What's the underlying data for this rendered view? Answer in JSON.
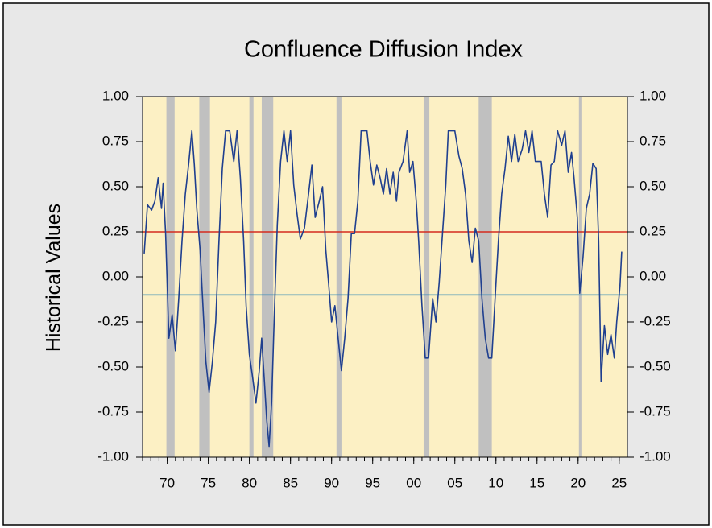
{
  "chart_data": {
    "type": "line",
    "title": "Confluence Diffusion Index",
    "y_label": "Historical Values",
    "x": [
      1967.2,
      1967.6,
      1968.1,
      1968.5,
      1968.9,
      1969.3,
      1969.5,
      1969.8,
      1970.2,
      1970.6,
      1971.0,
      1971.4,
      1971.8,
      1972.2,
      1972.6,
      1973.0,
      1973.3,
      1973.6,
      1974.0,
      1974.4,
      1974.7,
      1975.1,
      1975.5,
      1975.9,
      1976.3,
      1976.7,
      1977.1,
      1977.6,
      1978.1,
      1978.5,
      1978.9,
      1979.3,
      1979.6,
      1980.0,
      1980.4,
      1980.8,
      1981.2,
      1981.5,
      1981.8,
      1982.1,
      1982.4,
      1982.7,
      1983.0,
      1983.4,
      1983.8,
      1984.2,
      1984.6,
      1985.0,
      1985.4,
      1985.8,
      1986.2,
      1986.7,
      1987.2,
      1987.6,
      1988.0,
      1988.5,
      1988.9,
      1989.3,
      1989.7,
      1990.0,
      1990.4,
      1990.8,
      1991.2,
      1991.6,
      1992.0,
      1992.4,
      1992.8,
      1993.2,
      1993.6,
      1994.3,
      1994.7,
      1995.1,
      1995.5,
      1995.9,
      1996.3,
      1996.7,
      1997.1,
      1997.5,
      1997.9,
      1998.2,
      1998.7,
      1999.2,
      1999.5,
      1999.9,
      2000.3,
      2000.6,
      2001.0,
      2001.4,
      2001.8,
      2002.3,
      2002.7,
      2003.1,
      2003.5,
      2003.9,
      2004.2,
      2005.0,
      2005.5,
      2005.9,
      2006.3,
      2006.7,
      2007.1,
      2007.5,
      2007.9,
      2008.3,
      2008.7,
      2009.1,
      2009.5,
      2009.9,
      2010.3,
      2010.7,
      2011.1,
      2011.5,
      2011.9,
      2012.3,
      2012.7,
      2013.2,
      2013.6,
      2014.0,
      2014.4,
      2014.8,
      2015.5,
      2015.9,
      2016.3,
      2016.7,
      2017.1,
      2017.5,
      2018.0,
      2018.4,
      2018.8,
      2019.2,
      2019.5,
      2019.9,
      2020.2,
      2020.6,
      2021.0,
      2021.4,
      2021.8,
      2022.2,
      2022.5,
      2022.8,
      2023.2,
      2023.6,
      2024.0,
      2024.4,
      2024.7,
      2025.1,
      2025.3
    ],
    "series": [
      {
        "color": "#1f3f8f",
        "values": [
          0.13,
          0.4,
          0.37,
          0.42,
          0.55,
          0.38,
          0.52,
          0.24,
          -0.34,
          -0.21,
          -0.41,
          -0.12,
          0.2,
          0.46,
          0.62,
          0.81,
          0.62,
          0.38,
          0.15,
          -0.21,
          -0.47,
          -0.64,
          -0.47,
          -0.25,
          0.2,
          0.6,
          0.81,
          0.81,
          0.64,
          0.81,
          0.55,
          0.2,
          -0.16,
          -0.43,
          -0.56,
          -0.7,
          -0.52,
          -0.34,
          -0.56,
          -0.79,
          -0.94,
          -0.7,
          -0.25,
          0.29,
          0.64,
          0.81,
          0.64,
          0.81,
          0.51,
          0.35,
          0.21,
          0.27,
          0.46,
          0.62,
          0.33,
          0.42,
          0.5,
          0.15,
          -0.07,
          -0.25,
          -0.16,
          -0.34,
          -0.52,
          -0.34,
          -0.12,
          0.24,
          0.24,
          0.42,
          0.81,
          0.81,
          0.64,
          0.51,
          0.62,
          0.55,
          0.46,
          0.6,
          0.46,
          0.58,
          0.42,
          0.58,
          0.64,
          0.81,
          0.58,
          0.64,
          0.42,
          0.2,
          -0.16,
          -0.45,
          -0.45,
          -0.12,
          -0.25,
          -0.03,
          0.24,
          0.51,
          0.81,
          0.81,
          0.67,
          0.6,
          0.46,
          0.2,
          0.08,
          0.27,
          0.2,
          -0.12,
          -0.34,
          -0.45,
          -0.45,
          -0.12,
          0.2,
          0.46,
          0.6,
          0.78,
          0.64,
          0.79,
          0.64,
          0.71,
          0.81,
          0.69,
          0.81,
          0.64,
          0.64,
          0.46,
          0.33,
          0.62,
          0.64,
          0.81,
          0.73,
          0.81,
          0.58,
          0.69,
          0.55,
          0.33,
          -0.09,
          0.11,
          0.38,
          0.46,
          0.63,
          0.6,
          0.2,
          -0.58,
          -0.27,
          -0.43,
          -0.32,
          -0.45,
          -0.25,
          -0.05,
          0.14
        ]
      }
    ],
    "reference_lines": [
      {
        "value": 0.25,
        "color": "#d42a1e"
      },
      {
        "value": -0.1,
        "color": "#1f82b4"
      }
    ],
    "shaded_periods": [
      [
        1969.9,
        1970.9
      ],
      [
        1973.9,
        1975.2
      ],
      [
        1980.0,
        1980.5
      ],
      [
        1981.5,
        1982.9
      ],
      [
        1990.6,
        1991.2
      ],
      [
        2001.2,
        2001.9
      ],
      [
        2007.9,
        2009.5
      ],
      [
        2020.1,
        2020.4
      ]
    ],
    "shade_color": "#c0c0c0",
    "plot_background": "#fcf0c4",
    "xlim": [
      1967,
      2026
    ],
    "xticks": [
      {
        "value": 1970,
        "label": "70"
      },
      {
        "value": 1975,
        "label": "75"
      },
      {
        "value": 1980,
        "label": "80"
      },
      {
        "value": 1985,
        "label": "85"
      },
      {
        "value": 1990,
        "label": "90"
      },
      {
        "value": 1995,
        "label": "95"
      },
      {
        "value": 2000,
        "label": "00"
      },
      {
        "value": 2005,
        "label": "05"
      },
      {
        "value": 2010,
        "label": "10"
      },
      {
        "value": 2015,
        "label": "15"
      },
      {
        "value": 2020,
        "label": "20"
      },
      {
        "value": 2025,
        "label": "25"
      }
    ],
    "ylim": [
      -1,
      1
    ],
    "yticks": [
      {
        "value": -1,
        "label": "-1.00"
      },
      {
        "value": -0.75,
        "label": "-0.75"
      },
      {
        "value": -0.5,
        "label": "-0.50"
      },
      {
        "value": -0.25,
        "label": "-0.25"
      },
      {
        "value": 0,
        "label": "0.00"
      },
      {
        "value": 0.25,
        "label": "0.25"
      },
      {
        "value": 0.5,
        "label": "0.50"
      },
      {
        "value": 0.75,
        "label": "0.75"
      },
      {
        "value": 1,
        "label": "1.00"
      }
    ],
    "y2lim": [
      -1,
      1
    ],
    "y2ticks": [
      {
        "value": -1,
        "label": "-1.00"
      },
      {
        "value": -0.75,
        "label": "-0.75"
      },
      {
        "value": -0.5,
        "label": "-0.50"
      },
      {
        "value": -0.25,
        "label": "-0.25"
      },
      {
        "value": 0,
        "label": "0.00"
      },
      {
        "value": 0.25,
        "label": "0.25"
      },
      {
        "value": 0.5,
        "label": "0.50"
      },
      {
        "value": 0.75,
        "label": "0.75"
      },
      {
        "value": 1,
        "label": "1.00"
      }
    ]
  }
}
